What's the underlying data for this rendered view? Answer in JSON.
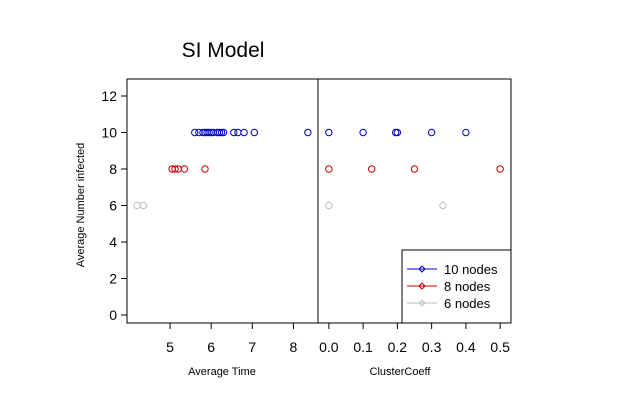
{
  "chart_data": {
    "type": "scatter",
    "title": "SI Model",
    "ylabel": "Average Number infected",
    "ylim": [
      0,
      12
    ],
    "y_ticks": [
      0,
      2,
      4,
      6,
      8,
      10,
      12
    ],
    "grid": false,
    "legend_position": "bottom-right",
    "legend": [
      {
        "label": "10 nodes",
        "color": "#0000CC"
      },
      {
        "label": "8 nodes",
        "color": "#CC0000"
      },
      {
        "label": "6 nodes",
        "color": "#BEBEBE"
      }
    ],
    "panels": [
      {
        "xlabel": "Average Time",
        "xlim": [
          4.05,
          8.5
        ],
        "x_ticks": [
          5,
          6,
          7,
          8
        ],
        "series": [
          {
            "name": "10 nodes",
            "color": "#0000CC",
            "y": 10,
            "x": [
              5.6,
              5.7,
              5.8,
              5.85,
              5.9,
              5.95,
              6.0,
              6.05,
              6.15,
              6.2,
              6.25,
              6.3,
              6.55,
              6.65,
              6.8,
              7.05,
              8.35
            ]
          },
          {
            "name": "8 nodes",
            "color": "#CC0000",
            "y": 8,
            "x": [
              5.05,
              5.12,
              5.2,
              5.35,
              5.85
            ]
          },
          {
            "name": "6 nodes",
            "color": "#BEBEBE",
            "y": 6,
            "x": [
              4.2,
              4.35
            ]
          }
        ]
      },
      {
        "xlabel": "ClusterCoeff",
        "xlim": [
          -0.02,
          0.52
        ],
        "x_ticks": [
          "0.0",
          "0.1",
          "0.2",
          "0.3",
          "0.4",
          "0.5"
        ],
        "series": [
          {
            "name": "10 nodes",
            "color": "#0000CC",
            "y": 10,
            "x": [
              0.0,
              0.1,
              0.195,
              0.2,
              0.3,
              0.4
            ]
          },
          {
            "name": "8 nodes",
            "color": "#CC0000",
            "y": 8,
            "x": [
              0.0,
              0.125,
              0.25,
              0.5
            ]
          },
          {
            "name": "6 nodes",
            "color": "#BEBEBE",
            "y": 6,
            "x": [
              0.0,
              0.333
            ]
          }
        ]
      }
    ]
  }
}
